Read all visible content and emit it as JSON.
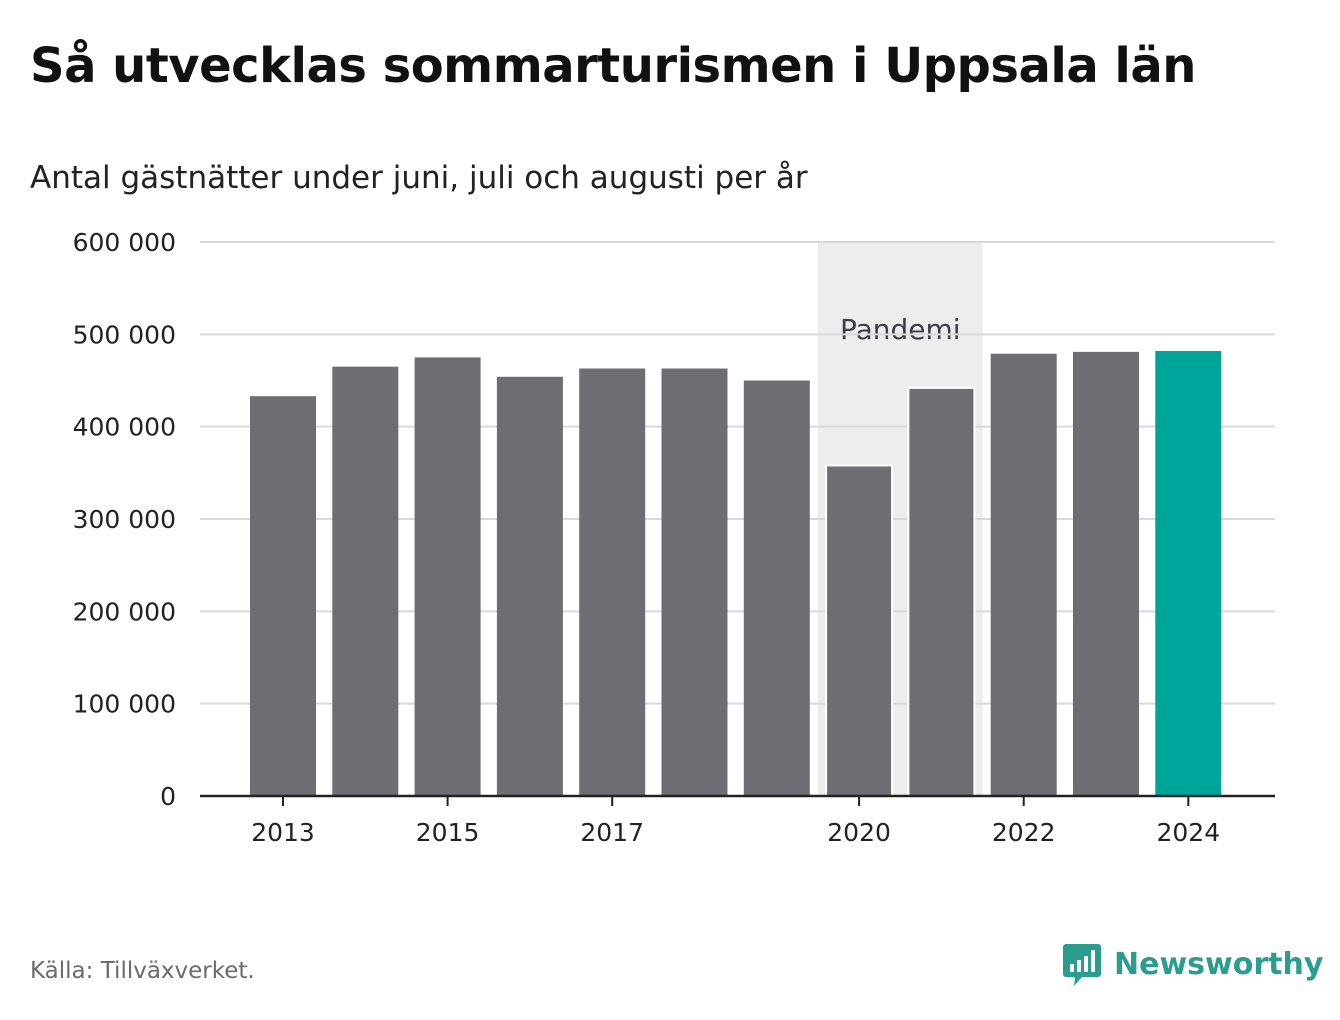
{
  "title": "Så utvecklas sommarturismen i Uppsala län",
  "subtitle": "Antal gästnätter under juni, juli och augusti per år",
  "source": "Källa: Tillväxverket.",
  "brand": {
    "name": "Newsworthy",
    "icon": "newsworthy-logo-icon",
    "color": "#2a9d8f"
  },
  "colors": {
    "bar": "#6e6d73",
    "highlight": "#00a59a",
    "shade": "#ededed",
    "grid": "#d9d9d9",
    "axis": "#222222"
  },
  "chart_data": {
    "type": "bar",
    "title": "Så utvecklas sommarturismen i Uppsala län",
    "subtitle": "Antal gästnätter under juni, juli och augusti per år",
    "categories": [
      "2013",
      "2014",
      "2015",
      "2016",
      "2017",
      "2018",
      "2019",
      "2020",
      "2021",
      "2022",
      "2023",
      "2024"
    ],
    "values": [
      433000,
      465000,
      475000,
      454000,
      463000,
      463000,
      450000,
      358000,
      442000,
      479000,
      481000,
      482000
    ],
    "highlight": "2024",
    "xticks": [
      "2013",
      "2015",
      "2017",
      "2020",
      "2022",
      "2024"
    ],
    "yticks": [
      0,
      100000,
      200000,
      300000,
      400000,
      500000,
      600000
    ],
    "ytick_labels": [
      "0",
      "100 000",
      "200 000",
      "300 000",
      "400 000",
      "500 000",
      "600 000"
    ],
    "ylim": [
      0,
      600000
    ],
    "grid": true,
    "legend": "none",
    "annotation": {
      "label": "Pandemi",
      "from": "2020",
      "to": "2021"
    }
  }
}
